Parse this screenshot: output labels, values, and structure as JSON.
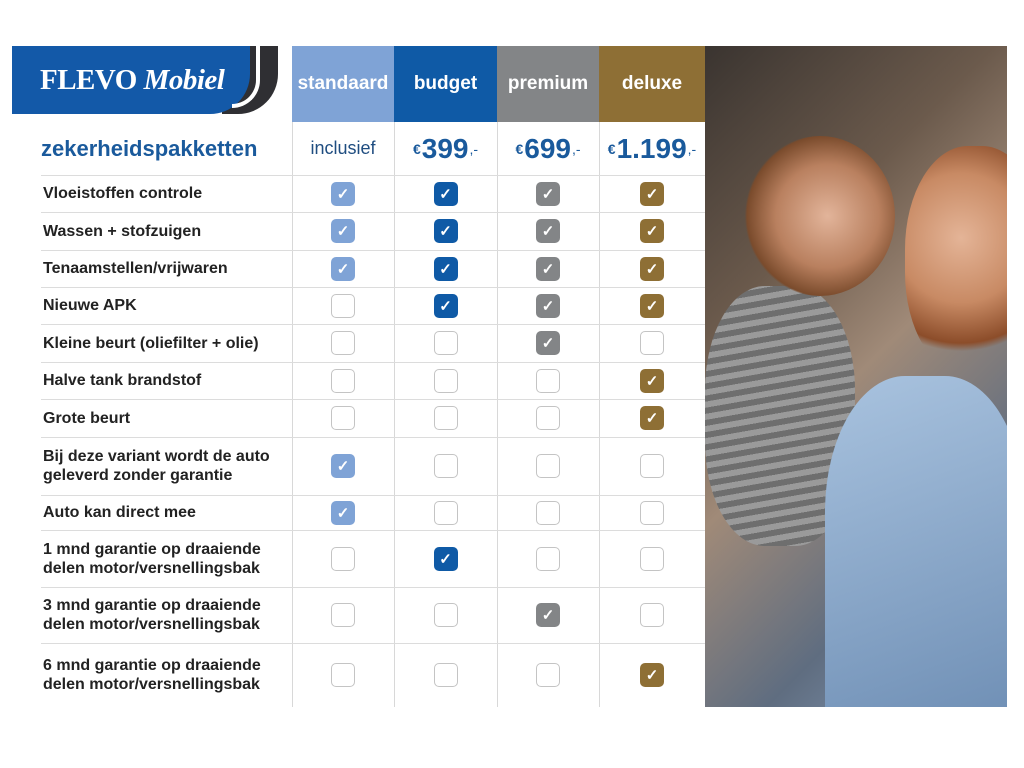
{
  "brand": {
    "name_part1": "FLEVO",
    "name_part2": "Mobiel",
    "color": "#1359a8"
  },
  "title": "zekerheidspakketten",
  "packages": [
    {
      "name": "standaard",
      "price": "inclusief",
      "color": "#7fa3d6"
    },
    {
      "name": "budget",
      "currency": "€",
      "price": "399",
      "suffix": ",-",
      "color": "#0f5aa6"
    },
    {
      "name": "premium",
      "currency": "€",
      "price": "699",
      "suffix": ",-",
      "color": "#838587"
    },
    {
      "name": "deluxe",
      "currency": "€",
      "price": "1.199",
      "suffix": ",-",
      "color": "#8e6f35"
    }
  ],
  "features": [
    {
      "label": "Vloeistoffen controle",
      "checks": [
        true,
        true,
        true,
        true
      ]
    },
    {
      "label": "Wassen + stofzuigen",
      "checks": [
        true,
        true,
        true,
        true
      ]
    },
    {
      "label": "Tenaamstellen/vrijwaren",
      "checks": [
        true,
        true,
        true,
        true
      ]
    },
    {
      "label": "Nieuwe APK",
      "checks": [
        false,
        true,
        true,
        true
      ]
    },
    {
      "label": "Kleine beurt (oliefilter + olie)",
      "checks": [
        false,
        false,
        true,
        false
      ]
    },
    {
      "label": "Halve tank brandstof",
      "checks": [
        false,
        false,
        false,
        true
      ]
    },
    {
      "label": "Grote beurt",
      "checks": [
        false,
        false,
        false,
        true
      ]
    },
    {
      "label": "Bij deze variant wordt de auto\ngeleverd zonder garantie",
      "checks": [
        true,
        false,
        false,
        false
      ]
    },
    {
      "label": "Auto kan direct mee",
      "checks": [
        true,
        false,
        false,
        false
      ]
    },
    {
      "label": "1 mnd garantie op draaiende\ndelen motor/versnellingsbak",
      "checks": [
        false,
        true,
        false,
        false
      ]
    },
    {
      "label": "3 mnd garantie op draaiende\ndelen motor/versnellingsbak",
      "checks": [
        false,
        false,
        true,
        false
      ]
    },
    {
      "label": "6 mnd garantie op draaiende\ndelen motor/versnellingsbak",
      "checks": [
        false,
        false,
        false,
        true
      ]
    }
  ],
  "check_icon": "checkmark-icon"
}
